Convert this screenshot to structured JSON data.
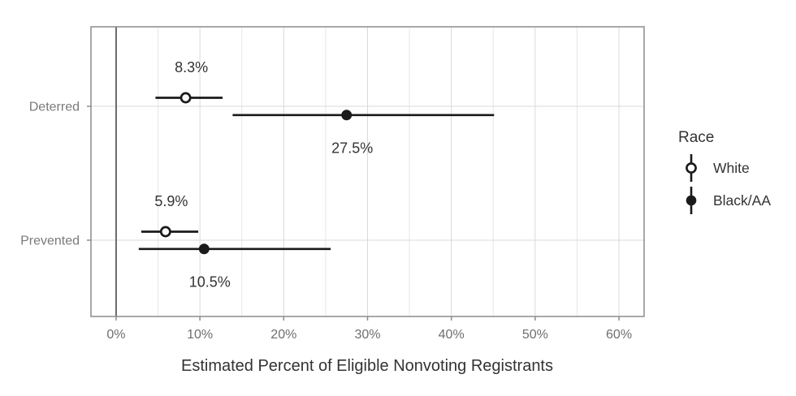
{
  "chart_data": {
    "type": "pointrange",
    "orientation": "horizontal",
    "xlabel": "Estimated Percent of Eligible Nonvoting Registrants",
    "ylabel": "",
    "categories": [
      "Deterred",
      "Prevented"
    ],
    "x_ticks": [
      0,
      10,
      20,
      30,
      40,
      50,
      60
    ],
    "x_tick_labels": [
      "0%",
      "10%",
      "20%",
      "30%",
      "40%",
      "50%",
      "60%"
    ],
    "x_minor_ticks": [
      5,
      15,
      25,
      35,
      45,
      55
    ],
    "xlim": [
      -3,
      63
    ],
    "zero_reference_line": 0,
    "legend": {
      "title": "Race",
      "entries": [
        {
          "label": "White",
          "marker": "open-circle"
        },
        {
          "label": "Black/AA",
          "marker": "filled-circle"
        }
      ]
    },
    "series": [
      {
        "name": "White",
        "marker": "open-circle",
        "points": [
          {
            "category": "Deterred",
            "value": 8.3,
            "ci_low": 4.7,
            "ci_high": 12.7,
            "label": "8.3%",
            "label_position": "above"
          },
          {
            "category": "Prevented",
            "value": 5.9,
            "ci_low": 3.0,
            "ci_high": 9.8,
            "label": "5.9%",
            "label_position": "above"
          }
        ]
      },
      {
        "name": "Black/AA",
        "marker": "filled-circle",
        "points": [
          {
            "category": "Deterred",
            "value": 27.5,
            "ci_low": 13.9,
            "ci_high": 45.1,
            "label": "27.5%",
            "label_position": "below"
          },
          {
            "category": "Prevented",
            "value": 10.5,
            "ci_low": 2.7,
            "ci_high": 25.6,
            "label": "10.5%",
            "label_position": "below"
          }
        ]
      }
    ],
    "colors": {
      "point_and_line": "#1a1a1a",
      "data_label_text": "#333333",
      "axis_tick_text": "#6e6e6e",
      "category_label_text": "#7a7a7a",
      "axis_title_text": "#333333",
      "legend_text": "#333333",
      "grid_major": "#d9d9d9",
      "grid_minor": "#e7e7e7",
      "panel_border": "#8c8c8c",
      "zero_line": "#6a6a6a",
      "background": "#ffffff"
    }
  }
}
